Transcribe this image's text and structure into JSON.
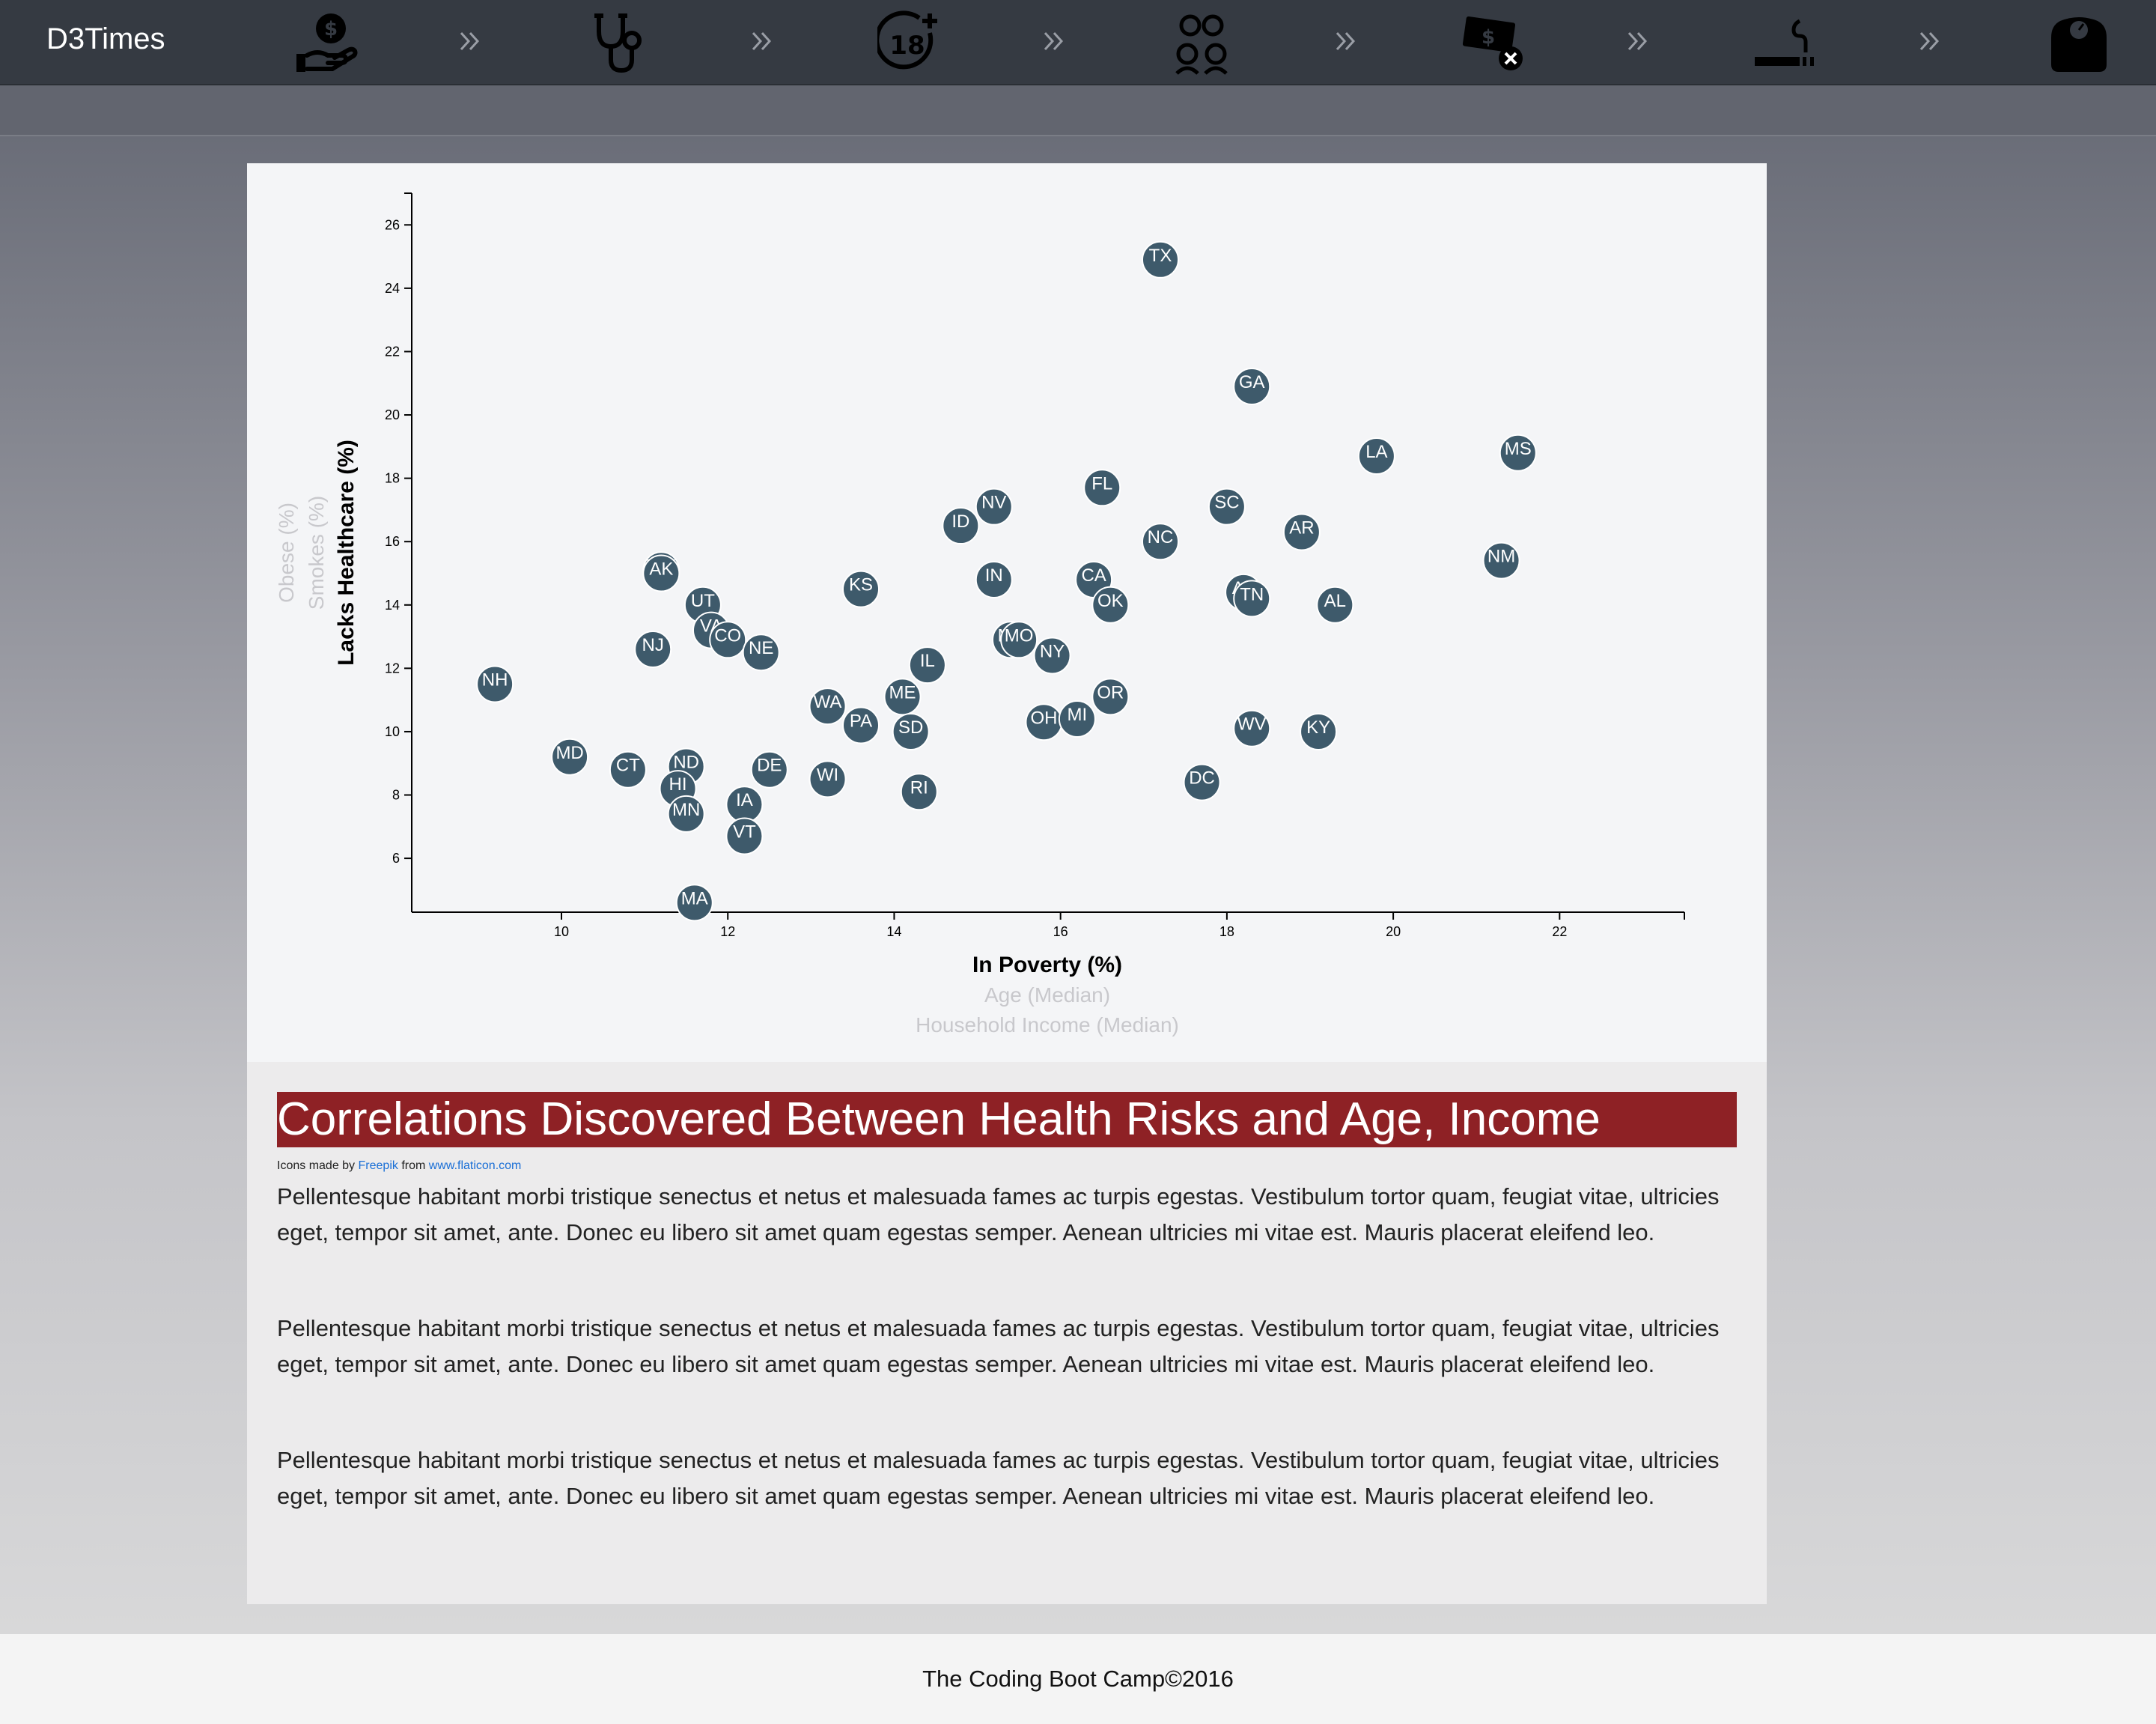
{
  "navbar": {
    "brand": "D3Times",
    "icons": [
      "money-hand-icon",
      "stethoscope-icon",
      "age-18-plus-icon",
      "family-icon",
      "no-money-icon",
      "smoking-icon",
      "scale-icon"
    ]
  },
  "chart": {
    "x_axis_label_active": "In Poverty (%)",
    "x_axis_label_2": "Age (Median)",
    "x_axis_label_3": "Household Income (Median)",
    "y_axis_label_active": "Lacks Healthcare (%)",
    "y_axis_label_2": "Smokes (%)",
    "y_axis_label_3": "Obese (%)"
  },
  "article": {
    "title": "Correlations Discovered Between Health Risks and Age, Income",
    "credit_prefix": "Icons made by",
    "credit_author": "Freepik",
    "credit_middle": "from",
    "credit_site": "www.flaticon.com",
    "paragraphs": [
      "Pellentesque habitant morbi tristique senectus et netus et malesuada fames ac turpis egestas. Vestibulum tortor quam, feugiat vitae, ultricies eget, tempor sit amet, ante. Donec eu libero sit amet quam egestas semper. Aenean ultricies mi vitae est. Mauris placerat eleifend leo.",
      "Pellentesque habitant morbi tristique senectus et netus et malesuada fames ac turpis egestas. Vestibulum tortor quam, feugiat vitae, ultricies eget, tempor sit amet, ante. Donec eu libero sit amet quam egestas semper. Aenean ultricies mi vitae est. Mauris placerat eleifend leo.",
      "Pellentesque habitant morbi tristique senectus et netus et malesuada fames ac turpis egestas. Vestibulum tortor quam, feugiat vitae, ultricies eget, tempor sit amet, ante. Donec eu libero sit amet quam egestas semper. Aenean ultricies mi vitae est. Mauris placerat eleifend leo."
    ]
  },
  "footer": {
    "text": "The Coding Boot Camp©2016"
  },
  "colors": {
    "navbar": "#353a42",
    "title_bar": "#8e2125",
    "marker": "#3e5a6b",
    "link": "#1a6fd6"
  },
  "chart_data": {
    "type": "scatter",
    "xlabel": "In Poverty (%)",
    "ylabel": "Lacks Healthcare (%)",
    "xlim": [
      8.2,
      23.5
    ],
    "ylim": [
      4.3,
      27
    ],
    "xticks": [
      10,
      12,
      14,
      16,
      18,
      20,
      22
    ],
    "yticks": [
      6,
      8,
      10,
      12,
      14,
      16,
      18,
      20,
      22,
      24,
      26
    ],
    "points": [
      {
        "label": "TX",
        "x": 17.2,
        "y": 24.9
      },
      {
        "label": "GA",
        "x": 18.3,
        "y": 20.9
      },
      {
        "label": "LA",
        "x": 19.8,
        "y": 18.7
      },
      {
        "label": "MS",
        "x": 21.5,
        "y": 18.8
      },
      {
        "label": "FL",
        "x": 16.5,
        "y": 17.7
      },
      {
        "label": "NV",
        "x": 15.2,
        "y": 17.1
      },
      {
        "label": "SC",
        "x": 18.0,
        "y": 17.1
      },
      {
        "label": "ID",
        "x": 14.8,
        "y": 16.5
      },
      {
        "label": "NC",
        "x": 17.2,
        "y": 16.0
      },
      {
        "label": "AR",
        "x": 18.9,
        "y": 16.3
      },
      {
        "label": "NM",
        "x": 21.3,
        "y": 15.4
      },
      {
        "label": "WY",
        "x": 11.2,
        "y": 15.1
      },
      {
        "label": "AK",
        "x": 11.2,
        "y": 15.0
      },
      {
        "label": "KS",
        "x": 13.6,
        "y": 14.5
      },
      {
        "label": "IN",
        "x": 15.2,
        "y": 14.8
      },
      {
        "label": "CA",
        "x": 16.4,
        "y": 14.8
      },
      {
        "label": "AZ",
        "x": 18.2,
        "y": 14.4
      },
      {
        "label": "TN",
        "x": 18.3,
        "y": 14.2
      },
      {
        "label": "OK",
        "x": 16.6,
        "y": 14.0
      },
      {
        "label": "AL",
        "x": 19.3,
        "y": 14.0
      },
      {
        "label": "UT",
        "x": 11.7,
        "y": 14.0
      },
      {
        "label": "VA",
        "x": 11.8,
        "y": 13.2
      },
      {
        "label": "CO",
        "x": 12.0,
        "y": 12.9
      },
      {
        "label": "NE",
        "x": 12.4,
        "y": 12.5
      },
      {
        "label": "NJ",
        "x": 11.1,
        "y": 12.6
      },
      {
        "label": "MT",
        "x": 15.4,
        "y": 12.9
      },
      {
        "label": "MO",
        "x": 15.5,
        "y": 12.9
      },
      {
        "label": "NY",
        "x": 15.9,
        "y": 12.4
      },
      {
        "label": "IL",
        "x": 14.4,
        "y": 12.1
      },
      {
        "label": "NH",
        "x": 9.2,
        "y": 11.5
      },
      {
        "label": "ME",
        "x": 14.1,
        "y": 11.1
      },
      {
        "label": "OR",
        "x": 16.6,
        "y": 11.1
      },
      {
        "label": "WA",
        "x": 13.2,
        "y": 10.8
      },
      {
        "label": "PA",
        "x": 13.6,
        "y": 10.2
      },
      {
        "label": "SD",
        "x": 14.2,
        "y": 10.0
      },
      {
        "label": "OH",
        "x": 15.8,
        "y": 10.3
      },
      {
        "label": "MI",
        "x": 16.2,
        "y": 10.4
      },
      {
        "label": "WV",
        "x": 18.3,
        "y": 10.1
      },
      {
        "label": "KY",
        "x": 19.1,
        "y": 10.0
      },
      {
        "label": "MD",
        "x": 10.1,
        "y": 9.2
      },
      {
        "label": "CT",
        "x": 10.8,
        "y": 8.8
      },
      {
        "label": "ND",
        "x": 11.5,
        "y": 8.9
      },
      {
        "label": "DE",
        "x": 12.5,
        "y": 8.8
      },
      {
        "label": "WI",
        "x": 13.2,
        "y": 8.5
      },
      {
        "label": "HI",
        "x": 11.4,
        "y": 8.2
      },
      {
        "label": "IA",
        "x": 12.2,
        "y": 7.7
      },
      {
        "label": "RI",
        "x": 14.3,
        "y": 8.1
      },
      {
        "label": "DC",
        "x": 17.7,
        "y": 8.4
      },
      {
        "label": "MN",
        "x": 11.5,
        "y": 7.4
      },
      {
        "label": "VT",
        "x": 12.2,
        "y": 6.7
      },
      {
        "label": "MA",
        "x": 11.6,
        "y": 4.6
      }
    ]
  }
}
